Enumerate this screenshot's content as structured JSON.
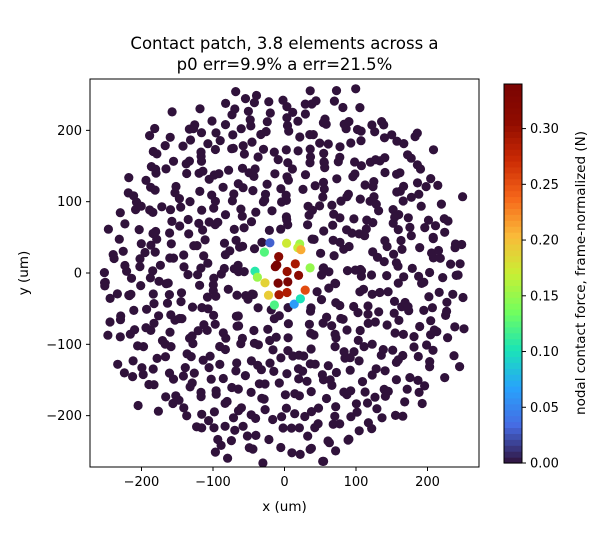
{
  "chart_data": {
    "type": "scatter",
    "title_line1": "Contact patch, 3.8 elements across a",
    "title_line2": "p0 err=9.9%  a err=21.5%",
    "xlabel": "x (um)",
    "ylabel": "y (um)",
    "xlim": [
      -272,
      272
    ],
    "ylim": [
      -272,
      272
    ],
    "x_ticks": [
      -200,
      -100,
      0,
      100,
      200
    ],
    "y_ticks": [
      -200,
      -100,
      0,
      100,
      200
    ],
    "colorbar": {
      "label": "nodal contact force, frame-normalized (N)",
      "min": 0.0,
      "max": 0.34,
      "ticks": [
        "0.00",
        "0.05",
        "0.10",
        "0.15",
        "0.20",
        "0.25",
        "0.30"
      ],
      "colormap": "turbo"
    },
    "background_point_color": "#30123b",
    "patch_radius_um": 48,
    "node_spacing_um": 17,
    "domain_radius_um": 260,
    "grid": false,
    "legend": "none"
  }
}
